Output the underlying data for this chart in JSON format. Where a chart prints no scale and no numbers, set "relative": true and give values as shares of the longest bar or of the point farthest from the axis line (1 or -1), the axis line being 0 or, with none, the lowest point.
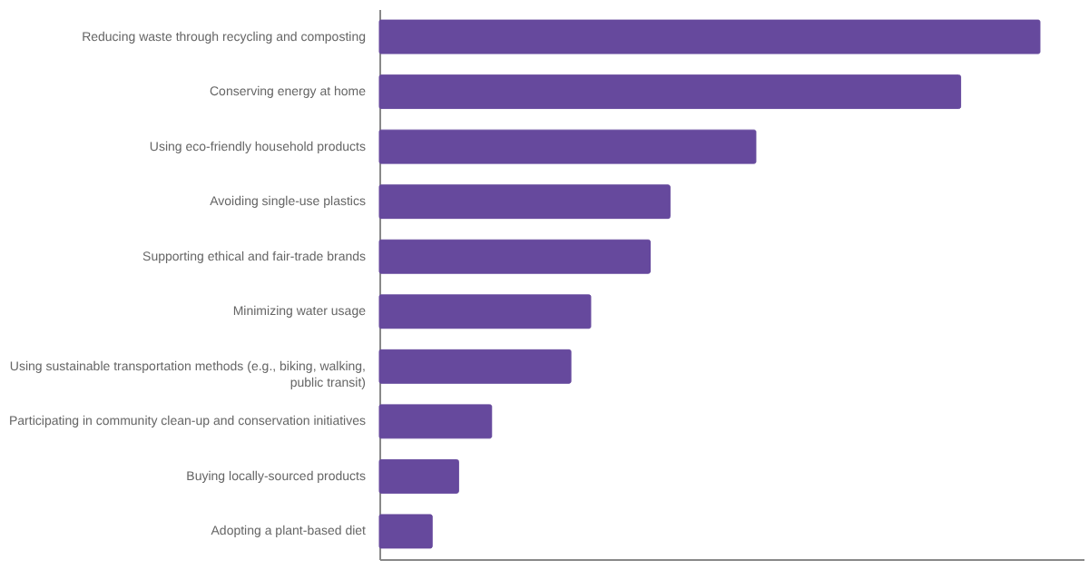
{
  "chart_data": {
    "type": "bar",
    "orientation": "horizontal",
    "relative": true,
    "categories": [
      "Reducing waste through recycling and composting",
      "Conserving energy at home",
      "Using eco-friendly household products",
      "Avoiding single-use plastics",
      "Supporting ethical and fair-trade brands",
      "Minimizing water usage",
      "Using sustainable transportation methods (e.g., biking, walking, public transit)",
      "Participating in community clean-up and conservation initiatives",
      "Buying locally-sourced products",
      "Adopting a plant-based diet"
    ],
    "values": [
      1,
      0.88,
      0.57,
      0.44,
      0.41,
      0.32,
      0.29,
      0.17,
      0.12,
      0.08
    ],
    "color": "#66499d"
  }
}
